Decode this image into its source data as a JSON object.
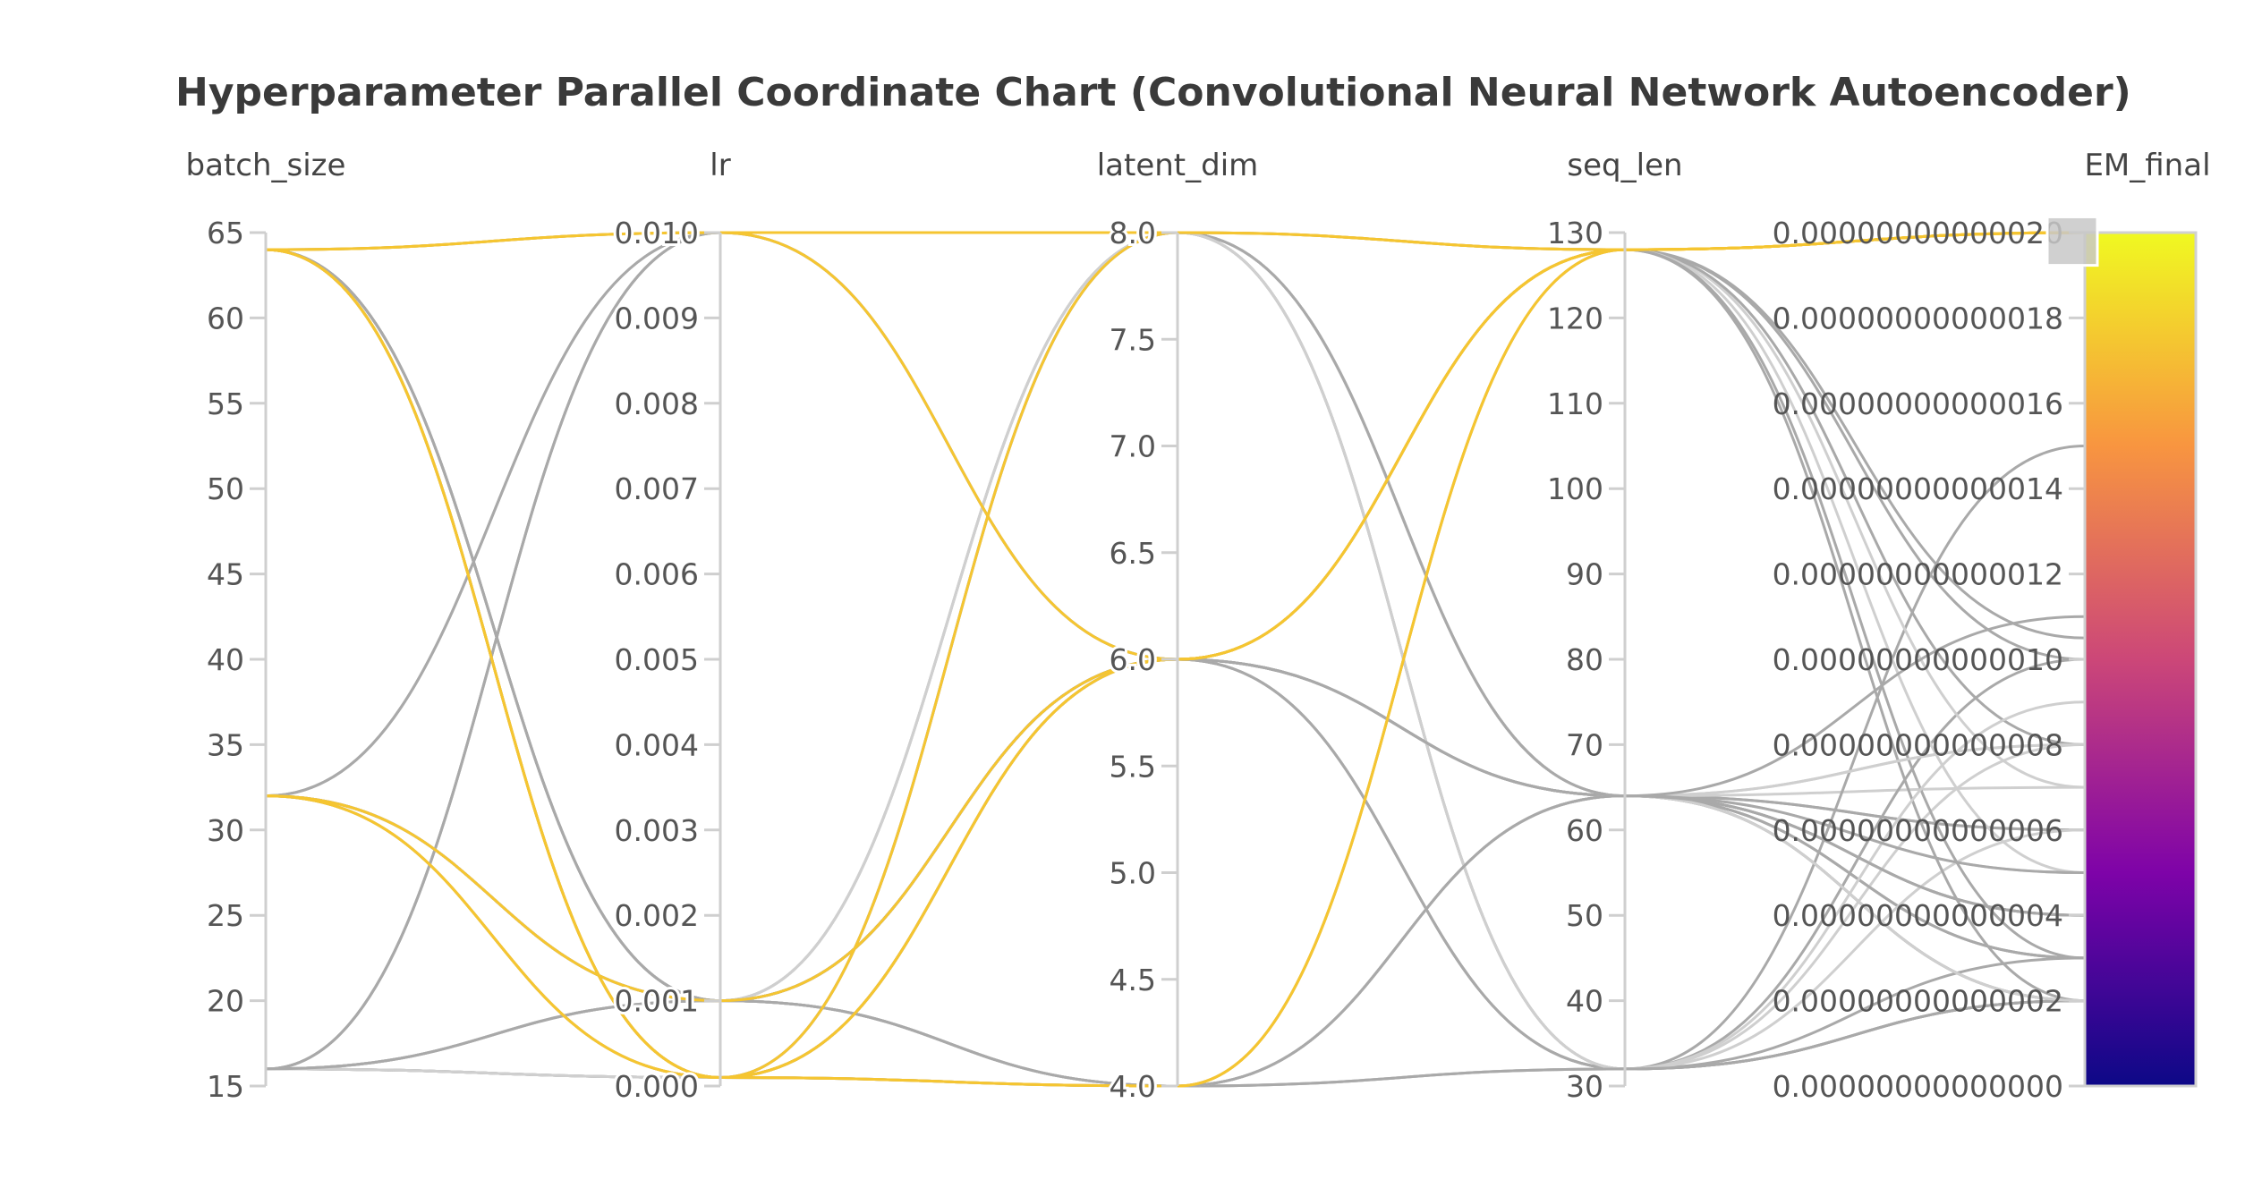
{
  "chart_data": {
    "type": "parallel_coordinates",
    "title": "Hyperparameter Parallel Coordinate Chart (Convolutional Neural Network Autoencoder)",
    "highlight_color": "#f5c531",
    "base_color": "#a9a9a9",
    "light_color": "#cfcfcf",
    "colorscale": [
      "#0d0887",
      "#7e03a8",
      "#cc4778",
      "#f89540",
      "#f0f921"
    ],
    "axes": [
      {
        "name": "batch_size",
        "range": [
          15,
          65
        ],
        "ticks": [
          "15",
          "20",
          "25",
          "30",
          "35",
          "40",
          "45",
          "50",
          "55",
          "60",
          "65"
        ]
      },
      {
        "name": "lr",
        "range": [
          0,
          0.01
        ],
        "ticks": [
          "0.000",
          "0.001",
          "0.002",
          "0.003",
          "0.004",
          "0.005",
          "0.006",
          "0.007",
          "0.008",
          "0.009",
          "0.010"
        ]
      },
      {
        "name": "latent_dim",
        "range": [
          4,
          8
        ],
        "ticks": [
          "4.0",
          "4.5",
          "5.0",
          "5.5",
          "6.0",
          "6.5",
          "7.0",
          "7.5",
          "8.0"
        ]
      },
      {
        "name": "seq_len",
        "range": [
          30,
          130
        ],
        "ticks": [
          "30",
          "40",
          "50",
          "60",
          "70",
          "80",
          "90",
          "100",
          "110",
          "120",
          "130"
        ]
      },
      {
        "name": "EM_final",
        "range": [
          0,
          2e-13
        ],
        "ticks": [
          "0.00000000000000",
          "0.00000000000002",
          "0.00000000000004",
          "0.00000000000006",
          "0.00000000000008",
          "0.00000000000010",
          "0.00000000000012",
          "0.00000000000014",
          "0.00000000000016",
          "0.00000000000018",
          "0.00000000000020"
        ]
      }
    ],
    "highlight_range": [
      1.94e-13,
      2.02e-13
    ],
    "runs": [
      [
        64,
        0.01,
        8,
        128,
        2e-13
      ],
      [
        64,
        0.01,
        6,
        128,
        2e-13
      ],
      [
        64,
        0.0001,
        8,
        128,
        2e-13
      ],
      [
        64,
        0.0001,
        4,
        128,
        2e-13
      ],
      [
        64,
        0.0001,
        6,
        128,
        2e-13
      ],
      [
        32,
        0.0001,
        6,
        128,
        2e-13
      ],
      [
        32,
        0.0001,
        4,
        128,
        2e-13
      ],
      [
        32,
        0.001,
        6,
        128,
        2e-13
      ],
      [
        64,
        0.0001,
        8,
        64,
        6e-14
      ],
      [
        64,
        0.0001,
        6,
        64,
        8e-14
      ],
      [
        16,
        0.01,
        8,
        64,
        4e-14
      ],
      [
        16,
        0.01,
        6,
        32,
        2e-14
      ],
      [
        16,
        0.0001,
        4,
        64,
        3e-14
      ],
      [
        16,
        0.0001,
        6,
        64,
        2e-14
      ],
      [
        16,
        0.001,
        8,
        32,
        3e-14
      ],
      [
        16,
        0.001,
        6,
        64,
        5e-14
      ],
      [
        32,
        0.01,
        6,
        32,
        2e-14
      ],
      [
        32,
        0.01,
        8,
        64,
        6e-14
      ],
      [
        32,
        0.001,
        8,
        64,
        4e-14
      ],
      [
        32,
        0.001,
        6,
        32,
        2e-14
      ],
      [
        32,
        0.001,
        4,
        64,
        3e-14
      ],
      [
        32,
        0.0001,
        8,
        64,
        7e-14
      ],
      [
        16,
        0.0001,
        8,
        32,
        1e-13
      ],
      [
        16,
        0.001,
        4,
        32,
        1.5e-13
      ],
      [
        64,
        0.01,
        8,
        32,
        8e-14
      ],
      [
        64,
        0.01,
        8,
        64,
        4e-14
      ],
      [
        64,
        0.001,
        6,
        64,
        3e-14
      ],
      [
        64,
        0.001,
        8,
        32,
        6e-14
      ],
      [
        32,
        0.001,
        6,
        64,
        2e-14
      ],
      [
        16,
        0.0001,
        6,
        128,
        1e-13
      ],
      [
        16,
        0.0001,
        6,
        128,
        7e-14
      ],
      [
        32,
        0.001,
        6,
        128,
        8e-14
      ],
      [
        64,
        0.001,
        4,
        128,
        1.05e-13
      ],
      [
        16,
        0.001,
        8,
        128,
        5e-14
      ],
      [
        64,
        0.001,
        6,
        128,
        3e-14
      ],
      [
        16,
        0.01,
        8,
        128,
        2e-14
      ],
      [
        16,
        0.0001,
        6,
        64,
        8e-14
      ],
      [
        16,
        0.001,
        6,
        64,
        4e-14
      ],
      [
        32,
        0.0001,
        6,
        64,
        1.1e-13
      ],
      [
        32,
        0.001,
        4,
        32,
        9e-14
      ],
      [
        64,
        0.0001,
        4,
        32,
        2e-14
      ],
      [
        64,
        0.0001,
        4,
        64,
        5e-14
      ],
      [
        32,
        0.0001,
        4,
        64,
        2e-14
      ],
      [
        64,
        0.001,
        4,
        64,
        4e-14
      ]
    ]
  }
}
